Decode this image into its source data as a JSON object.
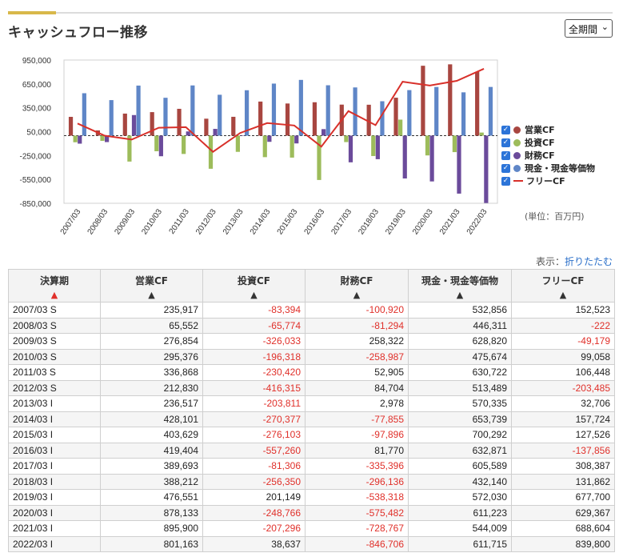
{
  "title": "キャッシュフロー推移",
  "period_select": {
    "selected": "全期間"
  },
  "unit_note": "(単位：百万円)",
  "display": {
    "label": "表示：",
    "toggle": "折りたたむ"
  },
  "colors": {
    "operating": "#a84640",
    "investing": "#9dbc5b",
    "financing": "#6b4b9b",
    "cash": "#5f86c7",
    "free": "#d8302a"
  },
  "legend": [
    {
      "key": "operating",
      "label": "営業CF",
      "kind": "dot"
    },
    {
      "key": "investing",
      "label": "投資CF",
      "kind": "dot"
    },
    {
      "key": "financing",
      "label": "財務CF",
      "kind": "dot"
    },
    {
      "key": "cash",
      "label": "現金・現金等価物",
      "kind": "dot"
    },
    {
      "key": "free",
      "label": "フリーCF",
      "kind": "line"
    }
  ],
  "chart_data": {
    "type": "bar",
    "categories": [
      "2007/03",
      "2008/03",
      "2009/03",
      "2010/03",
      "2011/03",
      "2012/03",
      "2013/03",
      "2014/03",
      "2015/03",
      "2016/03",
      "2017/03",
      "2018/03",
      "2019/03",
      "2020/03",
      "2021/03",
      "2022/03"
    ],
    "ylim": [
      -850000,
      950000
    ],
    "yticks": [
      950000,
      650000,
      350000,
      50000,
      -250000,
      -550000,
      -850000
    ],
    "ytick_labels": [
      "950,000",
      "650,000",
      "350,000",
      "50,000",
      "-250,000",
      "-550,000",
      "-850,000"
    ],
    "legend_position": "right",
    "series": [
      {
        "key": "operating",
        "name": "営業CF",
        "type": "bar",
        "values": [
          235917,
          65552,
          276854,
          295376,
          336868,
          212830,
          236517,
          428101,
          403629,
          419404,
          389693,
          388212,
          476551,
          878133,
          895900,
          801163
        ]
      },
      {
        "key": "investing",
        "name": "投資CF",
        "type": "bar",
        "values": [
          -83394,
          -65774,
          -326033,
          -196318,
          -230420,
          -416315,
          -203811,
          -270377,
          -276103,
          -557260,
          -81306,
          -256350,
          201149,
          -248766,
          -207296,
          38637
        ]
      },
      {
        "key": "financing",
        "name": "財務CF",
        "type": "bar",
        "values": [
          -100920,
          -81294,
          258322,
          -258987,
          52905,
          84704,
          2978,
          -77855,
          -97896,
          81770,
          -335396,
          -296136,
          -538318,
          -575482,
          -728767,
          -846706
        ]
      },
      {
        "key": "cash",
        "name": "現金・現金等価物",
        "type": "bar",
        "values": [
          532856,
          446311,
          628820,
          475674,
          630722,
          513489,
          570335,
          653739,
          700292,
          632871,
          605589,
          432140,
          572030,
          611223,
          544009,
          611715
        ]
      },
      {
        "key": "free",
        "name": "フリーCF",
        "type": "line",
        "values": [
          152523,
          -222,
          -49179,
          99058,
          106448,
          -203485,
          32706,
          157724,
          127526,
          -137856,
          308387,
          131862,
          677700,
          629367,
          688604,
          839800
        ]
      }
    ]
  },
  "table": {
    "headers": [
      {
        "label": "決算期",
        "active": true
      },
      {
        "label": "営業CF",
        "active": false
      },
      {
        "label": "投資CF",
        "active": false
      },
      {
        "label": "財務CF",
        "active": false
      },
      {
        "label": "現金・現金等価物",
        "active": false
      },
      {
        "label": "フリーCF",
        "active": false
      }
    ],
    "rows": [
      [
        "2007/03 S",
        "235,917",
        "-83,394",
        "-100,920",
        "532,856",
        "152,523"
      ],
      [
        "2008/03 S",
        "65,552",
        "-65,774",
        "-81,294",
        "446,311",
        "-222"
      ],
      [
        "2009/03 S",
        "276,854",
        "-326,033",
        "258,322",
        "628,820",
        "-49,179"
      ],
      [
        "2010/03 S",
        "295,376",
        "-196,318",
        "-258,987",
        "475,674",
        "99,058"
      ],
      [
        "2011/03 S",
        "336,868",
        "-230,420",
        "52,905",
        "630,722",
        "106,448"
      ],
      [
        "2012/03 S",
        "212,830",
        "-416,315",
        "84,704",
        "513,489",
        "-203,485"
      ],
      [
        "2013/03 I",
        "236,517",
        "-203,811",
        "2,978",
        "570,335",
        "32,706"
      ],
      [
        "2014/03 I",
        "428,101",
        "-270,377",
        "-77,855",
        "653,739",
        "157,724"
      ],
      [
        "2015/03 I",
        "403,629",
        "-276,103",
        "-97,896",
        "700,292",
        "127,526"
      ],
      [
        "2016/03 I",
        "419,404",
        "-557,260",
        "81,770",
        "632,871",
        "-137,856"
      ],
      [
        "2017/03 I",
        "389,693",
        "-81,306",
        "-335,396",
        "605,589",
        "308,387"
      ],
      [
        "2018/03 I",
        "388,212",
        "-256,350",
        "-296,136",
        "432,140",
        "131,862"
      ],
      [
        "2019/03 I",
        "476,551",
        "201,149",
        "-538,318",
        "572,030",
        "677,700"
      ],
      [
        "2020/03 I",
        "878,133",
        "-248,766",
        "-575,482",
        "611,223",
        "629,367"
      ],
      [
        "2021/03 I",
        "895,900",
        "-207,296",
        "-728,767",
        "544,009",
        "688,604"
      ],
      [
        "2022/03 I",
        "801,163",
        "38,637",
        "-846,706",
        "611,715",
        "839,800"
      ]
    ]
  }
}
